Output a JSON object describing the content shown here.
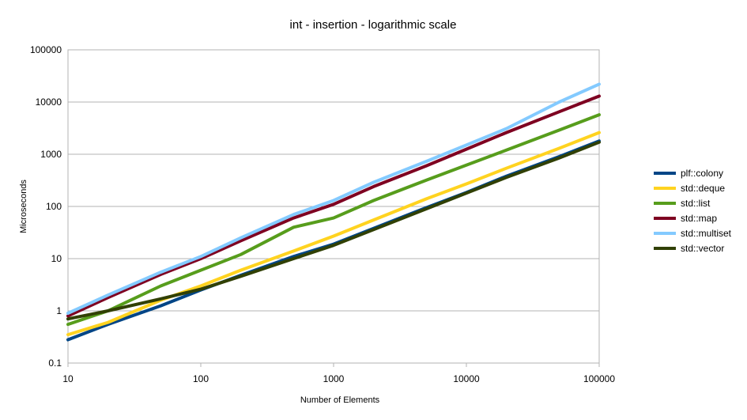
{
  "chart_data": {
    "type": "line",
    "title": "int - insertion - logarithmic scale",
    "xlabel": "Number of Elements",
    "ylabel": "Microseconds",
    "x_scale": "log",
    "y_scale": "log",
    "xlim": [
      10,
      100000
    ],
    "ylim": [
      0.1,
      100000
    ],
    "x_ticks": [
      "10",
      "100",
      "1000",
      "10000",
      "100000"
    ],
    "y_ticks": [
      "0.1",
      "1",
      "10",
      "100",
      "1000",
      "10000",
      "100000"
    ],
    "grid": "horizontal",
    "legend": "right",
    "x": [
      10,
      20,
      50,
      100,
      200,
      500,
      1000,
      2000,
      5000,
      10000,
      20000,
      50000,
      100000
    ],
    "series": [
      {
        "name": "plf::colony",
        "color": "#004586",
        "values": [
          0.28,
          0.55,
          1.25,
          2.5,
          4.8,
          11,
          19,
          38,
          95,
          185,
          380,
          900,
          1800
        ]
      },
      {
        "name": "std::deque",
        "color": "#ffd320",
        "values": [
          0.35,
          0.6,
          1.6,
          3.0,
          6.0,
          14,
          27,
          55,
          140,
          270,
          540,
          1300,
          2600
        ]
      },
      {
        "name": "std::list",
        "color": "#579d1c",
        "values": [
          0.55,
          1.0,
          3.0,
          6.0,
          12,
          40,
          60,
          130,
          320,
          620,
          1200,
          2900,
          5700
        ]
      },
      {
        "name": "std::map",
        "color": "#7e0021",
        "values": [
          0.8,
          1.8,
          5.0,
          10,
          22,
          60,
          110,
          240,
          600,
          1250,
          2600,
          6500,
          13000
        ]
      },
      {
        "name": "std::multiset",
        "color": "#83caff",
        "values": [
          0.9,
          2.0,
          5.5,
          11,
          25,
          70,
          130,
          290,
          730,
          1500,
          3100,
          10000,
          22000
        ]
      },
      {
        "name": "std::vector",
        "color": "#314004",
        "values": [
          0.7,
          1.0,
          1.7,
          2.6,
          4.6,
          10,
          18,
          36,
          90,
          180,
          360,
          850,
          1700
        ]
      }
    ]
  }
}
